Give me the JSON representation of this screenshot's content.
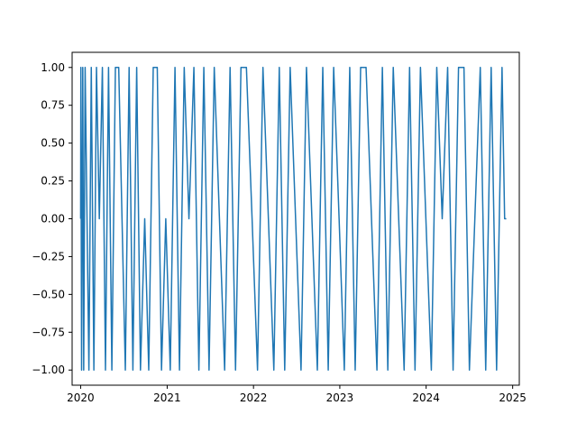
{
  "chart_data": {
    "type": "line",
    "title": "",
    "xlabel": "",
    "ylabel": "",
    "x_axis": "date",
    "xlim": [
      "2019-11-26",
      "2025-01-29"
    ],
    "ylim": [
      -1.1,
      1.1
    ],
    "grid": false,
    "legend": null,
    "series_color": "#1f77b4",
    "x_ticks": [
      {
        "value": "2020-01-01",
        "label": "2020"
      },
      {
        "value": "2021-01-01",
        "label": "2021"
      },
      {
        "value": "2022-01-01",
        "label": "2022"
      },
      {
        "value": "2023-01-01",
        "label": "2023"
      },
      {
        "value": "2024-01-01",
        "label": "2024"
      },
      {
        "value": "2025-01-01",
        "label": "2025"
      }
    ],
    "y_ticks": [
      {
        "value": 1.0,
        "label": "1.00"
      },
      {
        "value": 0.75,
        "label": "0.75"
      },
      {
        "value": 0.5,
        "label": "0.50"
      },
      {
        "value": 0.25,
        "label": "0.25"
      },
      {
        "value": 0.0,
        "label": "0.00"
      },
      {
        "value": -0.25,
        "label": "−0.25"
      },
      {
        "value": -0.5,
        "label": "−0.50"
      },
      {
        "value": -0.75,
        "label": "−0.75"
      },
      {
        "value": -1.0,
        "label": "−1.00"
      }
    ],
    "series": [
      {
        "x": [
          "2020-01-01",
          "2020-01-02",
          "2020-01-05",
          "2020-01-10",
          "2020-01-14",
          "2020-01-20",
          "2020-01-28",
          "2020-02-05",
          "2020-02-15",
          "2020-02-26",
          "2020-03-08",
          "2020-03-20",
          "2020-04-02",
          "2020-04-15",
          "2020-04-28",
          "2020-05-12",
          "2020-05-27",
          "2020-06-10",
          "2020-06-24",
          "2020-07-08",
          "2020-07-24",
          "2020-08-09",
          "2020-08-25",
          "2020-09-10",
          "2020-09-28",
          "2020-10-15",
          "2020-11-03",
          "2020-11-20",
          "2020-12-08",
          "2020-12-26",
          "2021-01-14",
          "2021-02-03",
          "2021-02-22",
          "2021-03-14",
          "2021-04-03",
          "2021-04-24",
          "2021-05-15",
          "2021-06-05",
          "2021-06-27",
          "2021-07-19",
          "2021-08-10",
          "2021-09-01",
          "2021-09-24",
          "2021-10-17",
          "2021-11-09",
          "2021-12-02",
          "2021-12-26",
          "2022-01-18",
          "2022-02-10",
          "2022-03-05",
          "2022-03-28",
          "2022-04-20",
          "2022-05-13",
          "2022-06-05",
          "2022-06-28",
          "2022-07-21",
          "2022-08-13",
          "2022-09-05",
          "2022-09-28",
          "2022-10-21",
          "2022-11-13",
          "2022-12-06",
          "2022-12-29",
          "2023-01-20",
          "2023-02-12",
          "2023-03-07",
          "2023-03-30",
          "2023-04-22",
          "2023-05-15",
          "2023-06-07",
          "2023-06-30",
          "2023-07-23",
          "2023-08-15",
          "2023-09-07",
          "2023-09-30",
          "2023-10-23",
          "2023-11-15",
          "2023-12-08",
          "2023-12-31",
          "2024-01-23",
          "2024-02-15",
          "2024-03-09",
          "2024-04-01",
          "2024-04-24",
          "2024-05-17",
          "2024-06-09",
          "2024-07-02",
          "2024-07-25",
          "2024-08-17",
          "2024-09-09",
          "2024-10-02",
          "2024-10-25",
          "2024-11-17",
          "2024-11-28",
          "2024-12-05"
        ],
        "y": [
          0,
          1,
          -1,
          1,
          -1,
          1,
          0,
          -1,
          1,
          -1,
          1,
          0,
          1,
          -1,
          1,
          -1,
          1,
          1,
          0,
          -1,
          1,
          -1,
          1,
          -1,
          0,
          -1,
          1,
          1,
          -1,
          0,
          -1,
          1,
          -1,
          1,
          0,
          1,
          -1,
          1,
          -1,
          1,
          0,
          -1,
          1,
          -1,
          1,
          1,
          0,
          -1,
          1,
          0,
          -1,
          1,
          -1,
          1,
          0,
          -1,
          1,
          0,
          -1,
          1,
          -1,
          1,
          0,
          -1,
          1,
          -1,
          1,
          1,
          0,
          -1,
          1,
          -1,
          1,
          0,
          -1,
          1,
          -1,
          1,
          0,
          -1,
          1,
          0,
          1,
          -1,
          1,
          1,
          -1,
          0,
          1,
          -1,
          1,
          -1,
          1,
          0,
          0
        ]
      }
    ]
  }
}
